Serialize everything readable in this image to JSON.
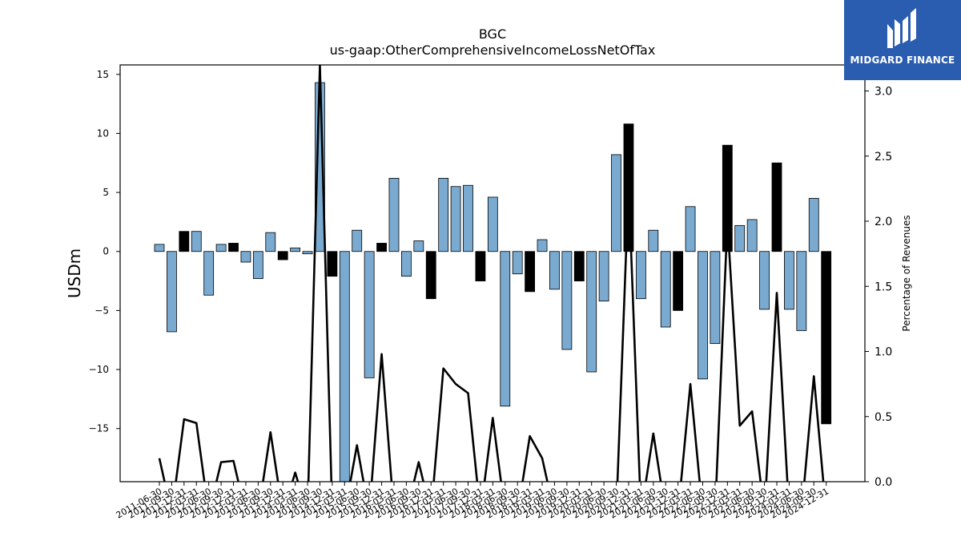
{
  "brand": {
    "name": "MIDGARD FINANCE",
    "logo_icon": "midgard-m-logo-icon",
    "color": "#2a5db0"
  },
  "chart_data": {
    "type": "bar",
    "title": "BGC",
    "subtitle": "us-gaap:OtherComprehensiveIncomeLossNetOfTax",
    "ylabel": "USDm",
    "y2label": "Percentage of Revenues",
    "ylim": [
      -19.5,
      15.8
    ],
    "y2lim": [
      0.0,
      3.2
    ],
    "yticks": [
      -15,
      -10,
      -5,
      0,
      5,
      10,
      15
    ],
    "y2ticks": [
      0.0,
      0.5,
      1.0,
      1.5,
      2.0,
      2.5,
      3.0
    ],
    "grid": false,
    "colors": {
      "positive_color": "#7aaad0",
      "negative_color": "#000000",
      "line_color": "#000000",
      "edge": "#000000"
    },
    "categories": [
      "2011-06-30",
      "2011-09-30",
      "2011-12-31",
      "2012-03-31",
      "2012-06-30",
      "2012-09-30",
      "2012-12-31",
      "2013-03-31",
      "2013-06-30",
      "2013-09-30",
      "2013-12-31",
      "2014-03-31",
      "2014-06-30",
      "2014-09-30",
      "2014-12-31",
      "2015-03-31",
      "2015-06-30",
      "2015-09-30",
      "2015-12-31",
      "2016-03-31",
      "2016-06-30",
      "2016-09-30",
      "2016-12-31",
      "2017-03-31",
      "2017-06-30",
      "2017-09-30",
      "2017-12-31",
      "2018-03-31",
      "2018-06-30",
      "2018-09-30",
      "2018-12-31",
      "2019-03-31",
      "2019-06-30",
      "2019-09-30",
      "2019-12-31",
      "2020-03-31",
      "2020-06-30",
      "2020-09-30",
      "2020-12-31",
      "2021-03-31",
      "2021-06-30",
      "2021-09-30",
      "2021-12-31",
      "2022-03-31",
      "2022-06-30",
      "2022-09-30",
      "2022-12-31",
      "2023-03-31",
      "2023-06-30",
      "2023-09-30",
      "2023-12-31",
      "2024-03-31",
      "2024-06-30",
      "2024-09-30",
      "2024-12-31"
    ],
    "values": [
      0.6,
      -6.8,
      1.7,
      1.7,
      -3.7,
      0.6,
      0.7,
      -0.9,
      -2.3,
      1.6,
      -0.7,
      0.3,
      -0.2,
      14.3,
      -2.1,
      -19.5,
      1.8,
      -10.7,
      0.7,
      6.2,
      -2.1,
      0.9,
      -4.0,
      6.2,
      5.5,
      5.6,
      -2.5,
      4.6,
      -13.1,
      -1.9,
      -3.4,
      1.0,
      -3.2,
      -8.3,
      -2.5,
      -10.2,
      -4.2,
      8.2,
      10.8,
      -4.0,
      1.8,
      -6.4,
      -5.0,
      3.8,
      -10.8,
      -7.8,
      9.0,
      2.2,
      2.7,
      -4.9,
      7.5,
      -4.9,
      -6.7,
      4.5,
      -14.6
    ],
    "highlight": [
      false,
      false,
      true,
      false,
      false,
      false,
      true,
      false,
      false,
      false,
      true,
      false,
      false,
      false,
      true,
      false,
      false,
      false,
      true,
      false,
      false,
      false,
      true,
      false,
      false,
      false,
      true,
      false,
      false,
      false,
      true,
      false,
      false,
      false,
      true,
      false,
      false,
      false,
      true,
      false,
      false,
      false,
      true,
      false,
      false,
      false,
      true,
      false,
      false,
      false,
      true,
      false,
      false,
      false,
      true
    ],
    "line_series": {
      "name": "Percentage of Revenues",
      "values": [
        0.18,
        null,
        0.48,
        0.45,
        null,
        0.15,
        0.16,
        null,
        null,
        0.38,
        null,
        0.07,
        null,
        3.2,
        null,
        null,
        0.28,
        null,
        0.98,
        null,
        null,
        0.15,
        null,
        0.87,
        0.75,
        0.68,
        null,
        0.49,
        null,
        null,
        0.35,
        0.18,
        null,
        null,
        null,
        null,
        null,
        null,
        2.28,
        null,
        0.37,
        null,
        null,
        0.75,
        null,
        null,
        2.0,
        0.43,
        0.54,
        null,
        1.45,
        null,
        null,
        0.81,
        null
      ]
    }
  }
}
